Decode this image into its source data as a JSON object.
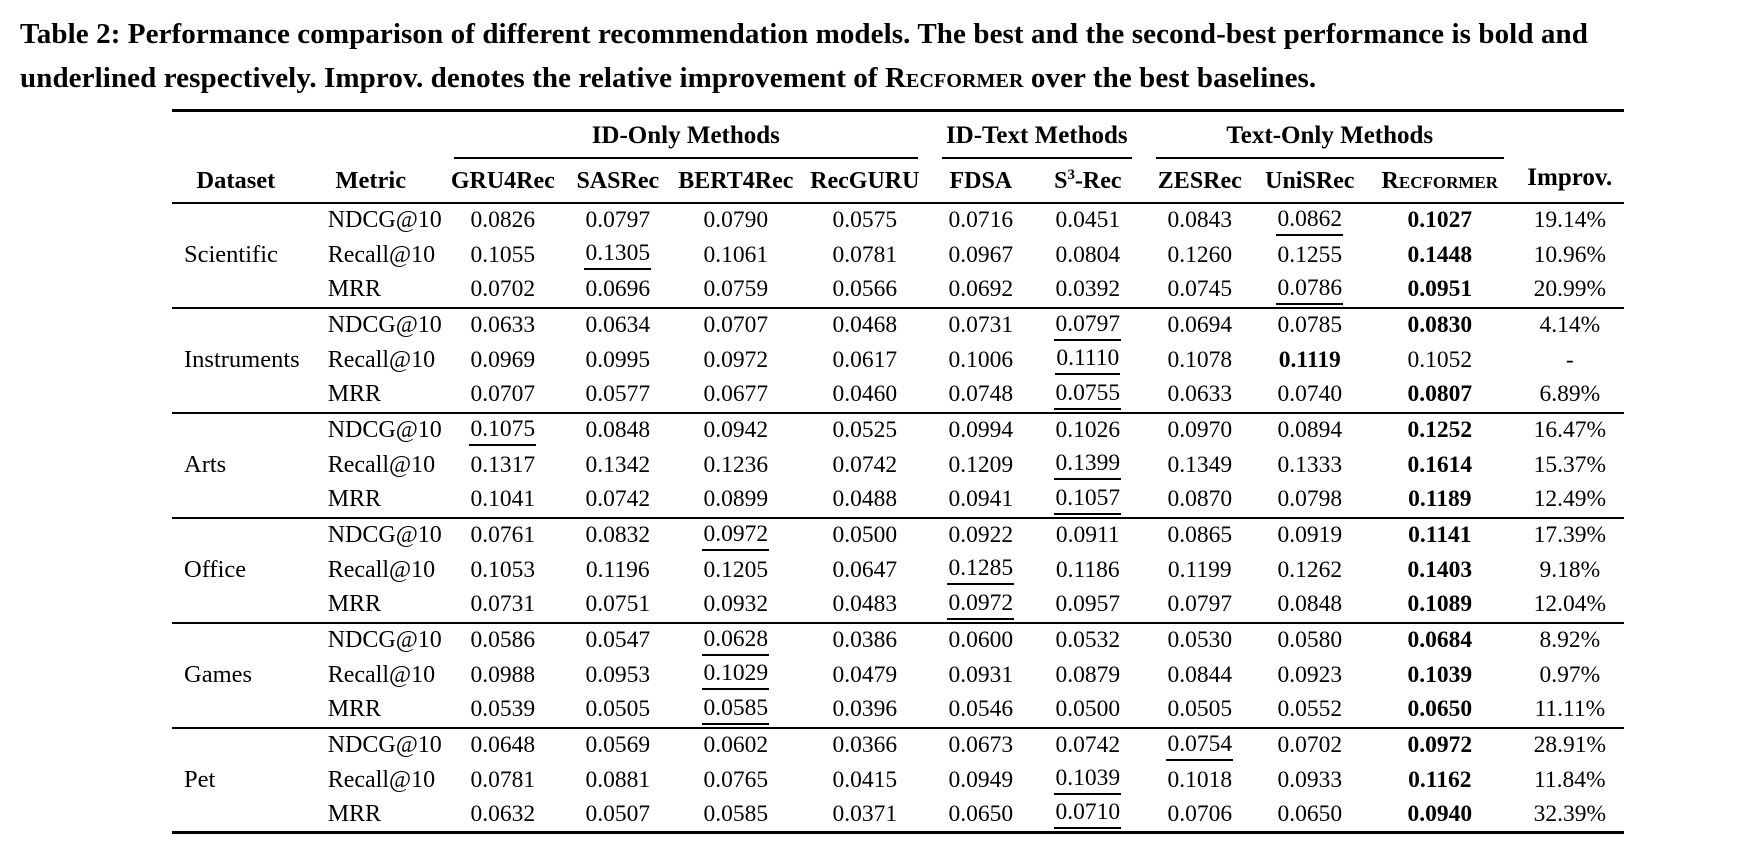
{
  "caption": {
    "line1": "Table 2: Performance comparison of different recommendation models. The best and the second-best performance is bold and",
    "line2_pre": "underlined respectively. Improv. denotes the relative improvement of ",
    "line2_smallcaps": "Recformer",
    "line2_post": " over the best baselines."
  },
  "table": {
    "dataset_label": "Dataset",
    "metric_label": "Metric",
    "improv_label": "Improv.",
    "col_groups": [
      {
        "label": "ID-Only Methods",
        "span": 4
      },
      {
        "label": "ID-Text Methods",
        "span": 2
      },
      {
        "label": "Text-Only Methods",
        "span": 3
      }
    ],
    "method_headers": [
      {
        "label": "GRU4Rec"
      },
      {
        "label": "SASRec"
      },
      {
        "label": "BERT4Rec"
      },
      {
        "label": "RecGURU"
      },
      {
        "label": "FDSA"
      },
      {
        "label": "S",
        "sup": "3",
        "suffix": "-Rec"
      },
      {
        "label": "ZESRec"
      },
      {
        "label": "UniSRec"
      },
      {
        "label": "Recformer",
        "smallcaps": true
      }
    ],
    "legend": {
      "bold_means": "best",
      "underline_means": "second-best"
    },
    "groups": [
      {
        "dataset": "Scientific",
        "rows": [
          {
            "metric": "NDCG@10",
            "values": [
              "0.0826",
              "0.0797",
              "0.0790",
              "0.0575",
              "0.0716",
              "0.0451",
              "0.0843",
              "0.0862",
              "0.1027"
            ],
            "underline": 7,
            "bold": 8,
            "improv": "19.14%"
          },
          {
            "metric": "Recall@10",
            "values": [
              "0.1055",
              "0.1305",
              "0.1061",
              "0.0781",
              "0.0967",
              "0.0804",
              "0.1260",
              "0.1255",
              "0.1448"
            ],
            "underline": 1,
            "bold": 8,
            "improv": "10.96%"
          },
          {
            "metric": "MRR",
            "values": [
              "0.0702",
              "0.0696",
              "0.0759",
              "0.0566",
              "0.0692",
              "0.0392",
              "0.0745",
              "0.0786",
              "0.0951"
            ],
            "underline": 7,
            "bold": 8,
            "improv": "20.99%"
          }
        ]
      },
      {
        "dataset": "Instruments",
        "rows": [
          {
            "metric": "NDCG@10",
            "values": [
              "0.0633",
              "0.0634",
              "0.0707",
              "0.0468",
              "0.0731",
              "0.0797",
              "0.0694",
              "0.0785",
              "0.0830"
            ],
            "underline": 5,
            "bold": 8,
            "improv": "4.14%"
          },
          {
            "metric": "Recall@10",
            "values": [
              "0.0969",
              "0.0995",
              "0.0972",
              "0.0617",
              "0.1006",
              "0.1110",
              "0.1078",
              "0.1119",
              "0.1052"
            ],
            "underline": 5,
            "bold": 7,
            "improv": "-"
          },
          {
            "metric": "MRR",
            "values": [
              "0.0707",
              "0.0577",
              "0.0677",
              "0.0460",
              "0.0748",
              "0.0755",
              "0.0633",
              "0.0740",
              "0.0807"
            ],
            "underline": 5,
            "bold": 8,
            "improv": "6.89%"
          }
        ]
      },
      {
        "dataset": "Arts",
        "rows": [
          {
            "metric": "NDCG@10",
            "values": [
              "0.1075",
              "0.0848",
              "0.0942",
              "0.0525",
              "0.0994",
              "0.1026",
              "0.0970",
              "0.0894",
              "0.1252"
            ],
            "underline": 0,
            "bold": 8,
            "improv": "16.47%"
          },
          {
            "metric": "Recall@10",
            "values": [
              "0.1317",
              "0.1342",
              "0.1236",
              "0.0742",
              "0.1209",
              "0.1399",
              "0.1349",
              "0.1333",
              "0.1614"
            ],
            "underline": 5,
            "bold": 8,
            "improv": "15.37%"
          },
          {
            "metric": "MRR",
            "values": [
              "0.1041",
              "0.0742",
              "0.0899",
              "0.0488",
              "0.0941",
              "0.1057",
              "0.0870",
              "0.0798",
              "0.1189"
            ],
            "underline": 5,
            "bold": 8,
            "improv": "12.49%"
          }
        ]
      },
      {
        "dataset": "Office",
        "rows": [
          {
            "metric": "NDCG@10",
            "values": [
              "0.0761",
              "0.0832",
              "0.0972",
              "0.0500",
              "0.0922",
              "0.0911",
              "0.0865",
              "0.0919",
              "0.1141"
            ],
            "underline": 2,
            "bold": 8,
            "improv": "17.39%"
          },
          {
            "metric": "Recall@10",
            "values": [
              "0.1053",
              "0.1196",
              "0.1205",
              "0.0647",
              "0.1285",
              "0.1186",
              "0.1199",
              "0.1262",
              "0.1403"
            ],
            "underline": 4,
            "bold": 8,
            "improv": "9.18%"
          },
          {
            "metric": "MRR",
            "values": [
              "0.0731",
              "0.0751",
              "0.0932",
              "0.0483",
              "0.0972",
              "0.0957",
              "0.0797",
              "0.0848",
              "0.1089"
            ],
            "underline": 4,
            "bold": 8,
            "improv": "12.04%"
          }
        ]
      },
      {
        "dataset": "Games",
        "rows": [
          {
            "metric": "NDCG@10",
            "values": [
              "0.0586",
              "0.0547",
              "0.0628",
              "0.0386",
              "0.0600",
              "0.0532",
              "0.0530",
              "0.0580",
              "0.0684"
            ],
            "underline": 2,
            "bold": 8,
            "improv": "8.92%"
          },
          {
            "metric": "Recall@10",
            "values": [
              "0.0988",
              "0.0953",
              "0.1029",
              "0.0479",
              "0.0931",
              "0.0879",
              "0.0844",
              "0.0923",
              "0.1039"
            ],
            "underline": 2,
            "bold": 8,
            "improv": "0.97%"
          },
          {
            "metric": "MRR",
            "values": [
              "0.0539",
              "0.0505",
              "0.0585",
              "0.0396",
              "0.0546",
              "0.0500",
              "0.0505",
              "0.0552",
              "0.0650"
            ],
            "underline": 2,
            "bold": 8,
            "improv": "11.11%"
          }
        ]
      },
      {
        "dataset": "Pet",
        "rows": [
          {
            "metric": "NDCG@10",
            "values": [
              "0.0648",
              "0.0569",
              "0.0602",
              "0.0366",
              "0.0673",
              "0.0742",
              "0.0754",
              "0.0702",
              "0.0972"
            ],
            "underline": 6,
            "bold": 8,
            "improv": "28.91%"
          },
          {
            "metric": "Recall@10",
            "values": [
              "0.0781",
              "0.0881",
              "0.0765",
              "0.0415",
              "0.0949",
              "0.1039",
              "0.1018",
              "0.0933",
              "0.1162"
            ],
            "underline": 5,
            "bold": 8,
            "improv": "11.84%"
          },
          {
            "metric": "MRR",
            "values": [
              "0.0632",
              "0.0507",
              "0.0585",
              "0.0371",
              "0.0650",
              "0.0710",
              "0.0706",
              "0.0650",
              "0.0940"
            ],
            "underline": 5,
            "bold": 8,
            "improv": "32.39%"
          }
        ]
      }
    ]
  }
}
